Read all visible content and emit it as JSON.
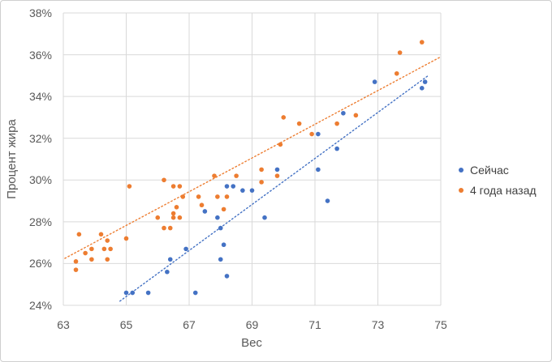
{
  "window": {
    "background": "#ffffff",
    "border_color": "#cfcfcf"
  },
  "chart_data": {
    "type": "scatter",
    "title": "",
    "xlabel": "Вес",
    "ylabel": "Процент жира",
    "xlim": [
      63,
      75
    ],
    "ylim": [
      24,
      38
    ],
    "x_ticks": [
      63,
      65,
      67,
      69,
      71,
      73,
      75
    ],
    "x_tick_labels": [
      "63",
      "65",
      "67",
      "69",
      "71",
      "73",
      "75"
    ],
    "y_ticks": [
      24,
      26,
      28,
      30,
      32,
      34,
      36,
      38
    ],
    "y_tick_labels": [
      "24%",
      "26%",
      "28%",
      "30%",
      "32%",
      "34%",
      "36%",
      "38%"
    ],
    "grid": true,
    "gridline_color": "#d9d9d9",
    "axis_text_color": "#595959",
    "legend_position": "right",
    "series": [
      {
        "name": "Сейчас",
        "color": "#4472c4",
        "marker": "circle",
        "points": [
          [
            65.0,
            24.6
          ],
          [
            65.2,
            24.6
          ],
          [
            65.7,
            24.6
          ],
          [
            66.3,
            25.6
          ],
          [
            66.4,
            26.2
          ],
          [
            66.9,
            26.7
          ],
          [
            67.2,
            24.6
          ],
          [
            67.5,
            28.5
          ],
          [
            67.9,
            28.2
          ],
          [
            68.0,
            27.7
          ],
          [
            68.0,
            26.2
          ],
          [
            68.1,
            26.9
          ],
          [
            68.2,
            25.4
          ],
          [
            68.2,
            29.7
          ],
          [
            68.4,
            29.7
          ],
          [
            68.7,
            29.5
          ],
          [
            69.0,
            29.5
          ],
          [
            69.4,
            28.2
          ],
          [
            69.8,
            30.5
          ],
          [
            71.1,
            30.5
          ],
          [
            71.1,
            32.2
          ],
          [
            71.4,
            29.0
          ],
          [
            71.7,
            31.5
          ],
          [
            71.9,
            33.2
          ],
          [
            72.9,
            34.7
          ],
          [
            74.4,
            34.4
          ],
          [
            74.5,
            34.7
          ]
        ],
        "trendline": {
          "style": "dotted",
          "x1": 64.8,
          "y1": 24.2,
          "x2": 74.6,
          "y2": 35.0
        }
      },
      {
        "name": "4 года назад",
        "color": "#ed7d31",
        "marker": "circle",
        "points": [
          [
            63.4,
            25.7
          ],
          [
            63.4,
            26.1
          ],
          [
            63.5,
            27.4
          ],
          [
            63.7,
            26.5
          ],
          [
            63.9,
            26.2
          ],
          [
            63.9,
            26.7
          ],
          [
            64.2,
            27.4
          ],
          [
            64.3,
            26.7
          ],
          [
            64.4,
            26.2
          ],
          [
            64.4,
            27.1
          ],
          [
            64.5,
            26.7
          ],
          [
            65.0,
            27.2
          ],
          [
            65.1,
            29.7
          ],
          [
            66.0,
            28.2
          ],
          [
            66.2,
            27.7
          ],
          [
            66.2,
            30.0
          ],
          [
            66.4,
            27.7
          ],
          [
            66.5,
            28.2
          ],
          [
            66.5,
            28.4
          ],
          [
            66.5,
            29.7
          ],
          [
            66.6,
            28.7
          ],
          [
            66.7,
            28.2
          ],
          [
            66.7,
            29.7
          ],
          [
            66.8,
            29.2
          ],
          [
            67.3,
            29.2
          ],
          [
            67.4,
            28.8
          ],
          [
            67.8,
            30.2
          ],
          [
            67.9,
            29.2
          ],
          [
            68.1,
            28.6
          ],
          [
            68.2,
            29.2
          ],
          [
            68.5,
            30.2
          ],
          [
            69.3,
            29.9
          ],
          [
            69.3,
            30.5
          ],
          [
            69.8,
            30.2
          ],
          [
            69.9,
            31.7
          ],
          [
            70.0,
            33.0
          ],
          [
            70.5,
            32.7
          ],
          [
            70.9,
            32.2
          ],
          [
            71.7,
            32.7
          ],
          [
            72.3,
            33.1
          ],
          [
            73.6,
            35.1
          ],
          [
            73.7,
            36.1
          ],
          [
            74.4,
            36.6
          ]
        ],
        "trendline": {
          "style": "dotted",
          "x1": 63.05,
          "y1": 26.25,
          "x2": 75.0,
          "y2": 35.9
        }
      }
    ]
  }
}
